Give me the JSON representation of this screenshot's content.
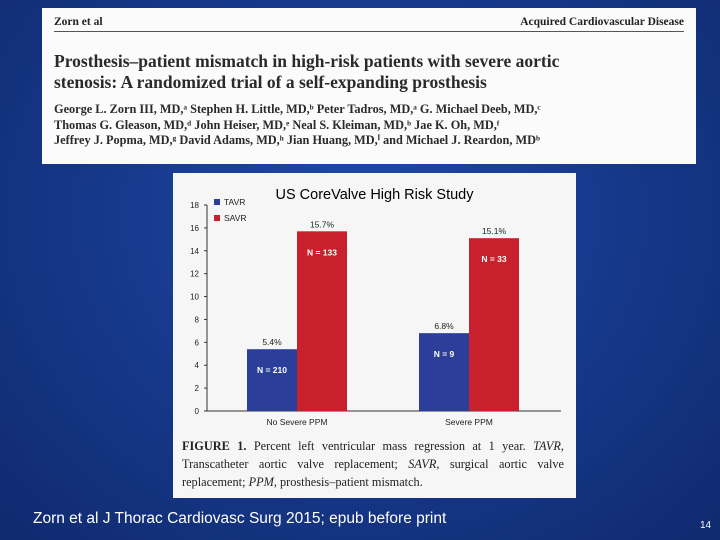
{
  "paper": {
    "running_author": "Zorn et al",
    "section": "Acquired Cardiovascular Disease",
    "title_line1": "Prosthesis–patient mismatch in high-risk patients with severe aortic",
    "title_line2": "stenosis: A randomized trial of a self-expanding prosthesis",
    "authors_line1": "George L. Zorn III, MD,ᵃ Stephen H. Little, MD,ᵇ Peter Tadros, MD,ᵃ G. Michael Deeb, MD,ᶜ",
    "authors_line2": "Thomas G. Gleason, MD,ᵈ John Heiser, MD,ᵉ Neal S. Kleiman, MD,ᵇ Jae K. Oh, MD,ᶠ",
    "authors_line3": "Jeffrey J. Popma, MD,ᵍ David Adams, MD,ʰ Jian Huang, MD,ⁱ and Michael J. Reardon, MDᵇ"
  },
  "colors": {
    "tavr": "#2b3f9a",
    "savr": "#c8202c",
    "background": "#173a8e"
  },
  "chart_data": {
    "type": "bar",
    "title": "US CoreValve High Risk Study",
    "categories": [
      "No Severe PPM",
      "Severe PPM"
    ],
    "series": [
      {
        "name": "TAVR",
        "values": [
          5.4,
          6.8
        ],
        "labels": [
          "5.4%",
          "6.8%"
        ],
        "n_labels": [
          "N = 210",
          "N = 9"
        ]
      },
      {
        "name": "SAVR",
        "values": [
          15.7,
          15.1
        ],
        "labels": [
          "15.7%",
          "15.1%"
        ],
        "n_labels": [
          "N = 133",
          "N = 33"
        ]
      }
    ],
    "ylim": [
      0,
      18
    ],
    "yticks": [
      0,
      2,
      4,
      6,
      8,
      10,
      12,
      14,
      16,
      18
    ],
    "xlabel": "",
    "ylabel": "",
    "legend": "top-left"
  },
  "caption": {
    "label": "FIGURE 1.",
    "text_1": " Percent left ventricular mass regression at 1 year. ",
    "tavr_abbr": "TAVR",
    "text_2": ", Transcatheter aortic valve replacement; ",
    "savr_abbr": "SAVR",
    "text_3": ", surgical aortic valve replacement; ",
    "ppm_abbr": "PPM",
    "text_4": ", prosthesis–patient mismatch."
  },
  "citation": "Zorn et al J Thorac Cardiovasc Surg 2015; epub before print",
  "slide_number": "14"
}
